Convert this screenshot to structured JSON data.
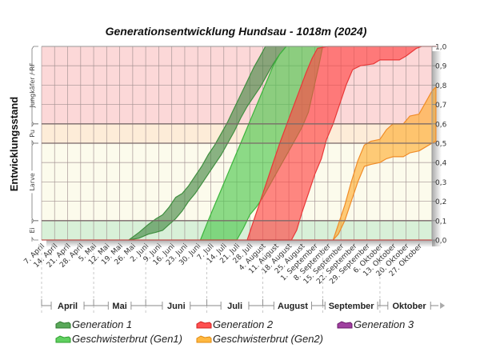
{
  "chart_data": {
    "type": "area",
    "title": "Generationsentwicklung Hundsau - 1018m (2024)",
    "ylabel": "Entwicklungsstand",
    "ylim": [
      0,
      1
    ],
    "yticks": [
      "0,0",
      "0,1",
      "0,2",
      "0,3",
      "0,4",
      "0,5",
      "0,6",
      "0,7",
      "0,8",
      "0,9",
      "1,0"
    ],
    "ytick_values": [
      0,
      0.1,
      0.2,
      0.3,
      0.4,
      0.5,
      0.6,
      0.7,
      0.8,
      0.9,
      1.0
    ],
    "grid": true,
    "stages": [
      {
        "label": "Ei",
        "from": 0.0,
        "to": 0.1,
        "color": "#d8f0d8"
      },
      {
        "label": "Larve",
        "from": 0.1,
        "to": 0.5,
        "color": "#fcfbec"
      },
      {
        "label": "Pu",
        "from": 0.5,
        "to": 0.6,
        "color": "#fdecd8"
      },
      {
        "label": "Jungkäfer / RF",
        "from": 0.6,
        "to": 1.0,
        "color": "#fcd8d8"
      }
    ],
    "x_labels": [
      "7. April",
      "14. April",
      "21. April",
      "28. April",
      "5. Mai",
      "12. Mai",
      "19. Mai",
      "26. Mai",
      "2. Juni",
      "9. Juni",
      "16. Juni",
      "23. Juni",
      "30. Juni",
      "7. Juli",
      "14. Juli",
      "21. Juli",
      "28. Juli",
      "4. August",
      "11. August",
      "18. August",
      "25. August",
      "1. September",
      "8. September",
      "15. September",
      "22. September",
      "29. September",
      "6. Oktober",
      "13. Oktober",
      "20. Oktober",
      "27. Oktober"
    ],
    "months": [
      {
        "label": "April",
        "start_week": 0,
        "end_week": 4
      },
      {
        "label": "Mai",
        "start_week": 4,
        "end_week": 8
      },
      {
        "label": "Juni",
        "start_week": 8,
        "end_week": 12.7
      },
      {
        "label": "Juli",
        "start_week": 12.7,
        "end_week": 17
      },
      {
        "label": "August",
        "start_week": 17,
        "end_week": 21.6
      },
      {
        "label": "September",
        "start_week": 21.6,
        "end_week": 26
      },
      {
        "label": "Oktober",
        "start_week": 26,
        "end_week": 30.5
      }
    ],
    "series": [
      {
        "name": "Generation 1",
        "color": "#3f8f3f",
        "fill": "rgba(60,130,60,0.6)",
        "upper": [
          [
            6.7,
            0
          ],
          [
            7.5,
            0.04
          ],
          [
            8.2,
            0.08
          ],
          [
            8.8,
            0.11
          ],
          [
            9.3,
            0.13
          ],
          [
            9.8,
            0.17
          ],
          [
            10.3,
            0.22
          ],
          [
            10.8,
            0.24
          ],
          [
            11.3,
            0.28
          ],
          [
            11.8,
            0.33
          ],
          [
            12.3,
            0.38
          ],
          [
            12.8,
            0.44
          ],
          [
            13.3,
            0.49
          ],
          [
            13.8,
            0.55
          ],
          [
            14.3,
            0.61
          ],
          [
            14.8,
            0.68
          ],
          [
            15.3,
            0.75
          ],
          [
            15.8,
            0.82
          ],
          [
            16.3,
            0.89
          ],
          [
            16.8,
            0.95
          ],
          [
            17.2,
            1.0
          ]
        ],
        "lower": [
          [
            6.7,
            0
          ],
          [
            7.5,
            0.01
          ],
          [
            8.2,
            0.03
          ],
          [
            8.8,
            0.04
          ],
          [
            9.3,
            0.05
          ],
          [
            9.8,
            0.08
          ],
          [
            10.3,
            0.11
          ],
          [
            10.8,
            0.15
          ],
          [
            11.3,
            0.2
          ],
          [
            11.8,
            0.24
          ],
          [
            12.3,
            0.29
          ],
          [
            12.8,
            0.34
          ],
          [
            13.3,
            0.39
          ],
          [
            13.8,
            0.44
          ],
          [
            14.3,
            0.5
          ],
          [
            14.8,
            0.56
          ],
          [
            15.3,
            0.63
          ],
          [
            15.8,
            0.69
          ],
          [
            16.3,
            0.74
          ],
          [
            16.8,
            0.79
          ],
          [
            17.3,
            0.85
          ],
          [
            17.8,
            0.91
          ],
          [
            18.3,
            0.96
          ],
          [
            18.8,
            1.0
          ]
        ]
      },
      {
        "name": "Geschwisterbrut (Gen1)",
        "color": "#3cb43c",
        "fill": "rgba(80,200,80,0.65)",
        "upper": [
          [
            12.2,
            0
          ],
          [
            12.8,
            0.1
          ],
          [
            13.3,
            0.18
          ],
          [
            13.8,
            0.26
          ],
          [
            14.3,
            0.34
          ],
          [
            14.8,
            0.42
          ],
          [
            15.3,
            0.5
          ],
          [
            15.8,
            0.58
          ],
          [
            16.3,
            0.66
          ],
          [
            16.8,
            0.74
          ],
          [
            17.3,
            0.82
          ],
          [
            17.8,
            0.9
          ],
          [
            18.3,
            0.96
          ],
          [
            18.8,
            1.0
          ],
          [
            21.3,
            1.0
          ]
        ],
        "lower": [
          [
            15.0,
            0
          ],
          [
            15.5,
            0.06
          ],
          [
            16.0,
            0.13
          ],
          [
            16.5,
            0.17
          ],
          [
            17.0,
            0.22
          ],
          [
            17.5,
            0.28
          ],
          [
            18.0,
            0.34
          ],
          [
            18.5,
            0.4
          ],
          [
            19.0,
            0.46
          ],
          [
            19.5,
            0.52
          ],
          [
            20.0,
            0.58
          ],
          [
            20.5,
            0.66
          ],
          [
            20.9,
            0.78
          ],
          [
            21.3,
            0.9
          ],
          [
            21.6,
            1.0
          ]
        ]
      },
      {
        "name": "Generation 2",
        "color": "#e83838",
        "fill": "rgba(255,70,70,0.65)",
        "upper": [
          [
            15.8,
            0
          ],
          [
            16.3,
            0.1
          ],
          [
            16.8,
            0.2
          ],
          [
            17.3,
            0.3
          ],
          [
            17.8,
            0.4
          ],
          [
            18.3,
            0.5
          ],
          [
            18.8,
            0.59
          ],
          [
            19.3,
            0.68
          ],
          [
            19.8,
            0.77
          ],
          [
            20.3,
            0.86
          ],
          [
            20.8,
            0.94
          ],
          [
            21.2,
            0.99
          ],
          [
            22.0,
            1.0
          ],
          [
            30.3,
            1.0
          ]
        ],
        "lower": [
          [
            19.2,
            0
          ],
          [
            19.6,
            0.05
          ],
          [
            20.0,
            0.14
          ],
          [
            20.5,
            0.24
          ],
          [
            21.0,
            0.34
          ],
          [
            21.5,
            0.42
          ],
          [
            21.9,
            0.52
          ],
          [
            22.4,
            0.6
          ],
          [
            22.9,
            0.7
          ],
          [
            23.4,
            0.8
          ],
          [
            23.9,
            0.88
          ],
          [
            24.5,
            0.9
          ],
          [
            25.5,
            0.91
          ],
          [
            26.0,
            0.93
          ],
          [
            27.5,
            0.93
          ],
          [
            28.0,
            0.95
          ],
          [
            28.8,
            0.99
          ],
          [
            29.2,
            1.0
          ],
          [
            30.3,
            1.0
          ]
        ]
      },
      {
        "name": "Geschwisterbrut (Gen2)",
        "color": "#f08c28",
        "fill": "rgba(255,170,40,0.6)",
        "upper": [
          [
            22.4,
            0
          ],
          [
            22.8,
            0.08
          ],
          [
            23.3,
            0.18
          ],
          [
            23.8,
            0.3
          ],
          [
            24.3,
            0.41
          ],
          [
            24.8,
            0.49
          ],
          [
            25.3,
            0.51
          ],
          [
            26.0,
            0.52
          ],
          [
            26.5,
            0.57
          ],
          [
            27.0,
            0.6
          ],
          [
            27.8,
            0.6
          ],
          [
            28.3,
            0.64
          ],
          [
            29.0,
            0.65
          ],
          [
            29.5,
            0.71
          ],
          [
            30.0,
            0.77
          ],
          [
            30.3,
            0.79
          ]
        ],
        "lower": [
          [
            22.4,
            0
          ],
          [
            22.8,
            0.03
          ],
          [
            23.3,
            0.1
          ],
          [
            23.8,
            0.2
          ],
          [
            24.3,
            0.3
          ],
          [
            24.8,
            0.38
          ],
          [
            25.3,
            0.39
          ],
          [
            26.0,
            0.4
          ],
          [
            26.5,
            0.42
          ],
          [
            27.0,
            0.43
          ],
          [
            27.8,
            0.43
          ],
          [
            28.3,
            0.45
          ],
          [
            29.0,
            0.46
          ],
          [
            29.5,
            0.48
          ],
          [
            30.0,
            0.5
          ],
          [
            30.3,
            0.51
          ]
        ]
      },
      {
        "name": "Generation 3",
        "color": "#8b2b8b",
        "fill": "rgba(140,40,140,0.6)",
        "upper": [],
        "lower": []
      }
    ],
    "legend": [
      "Generation 1",
      "Generation 2",
      "Generation 3",
      "Geschwisterbrut (Gen1)",
      "Geschwisterbrut (Gen2)"
    ],
    "legend_placement": "bottom"
  }
}
